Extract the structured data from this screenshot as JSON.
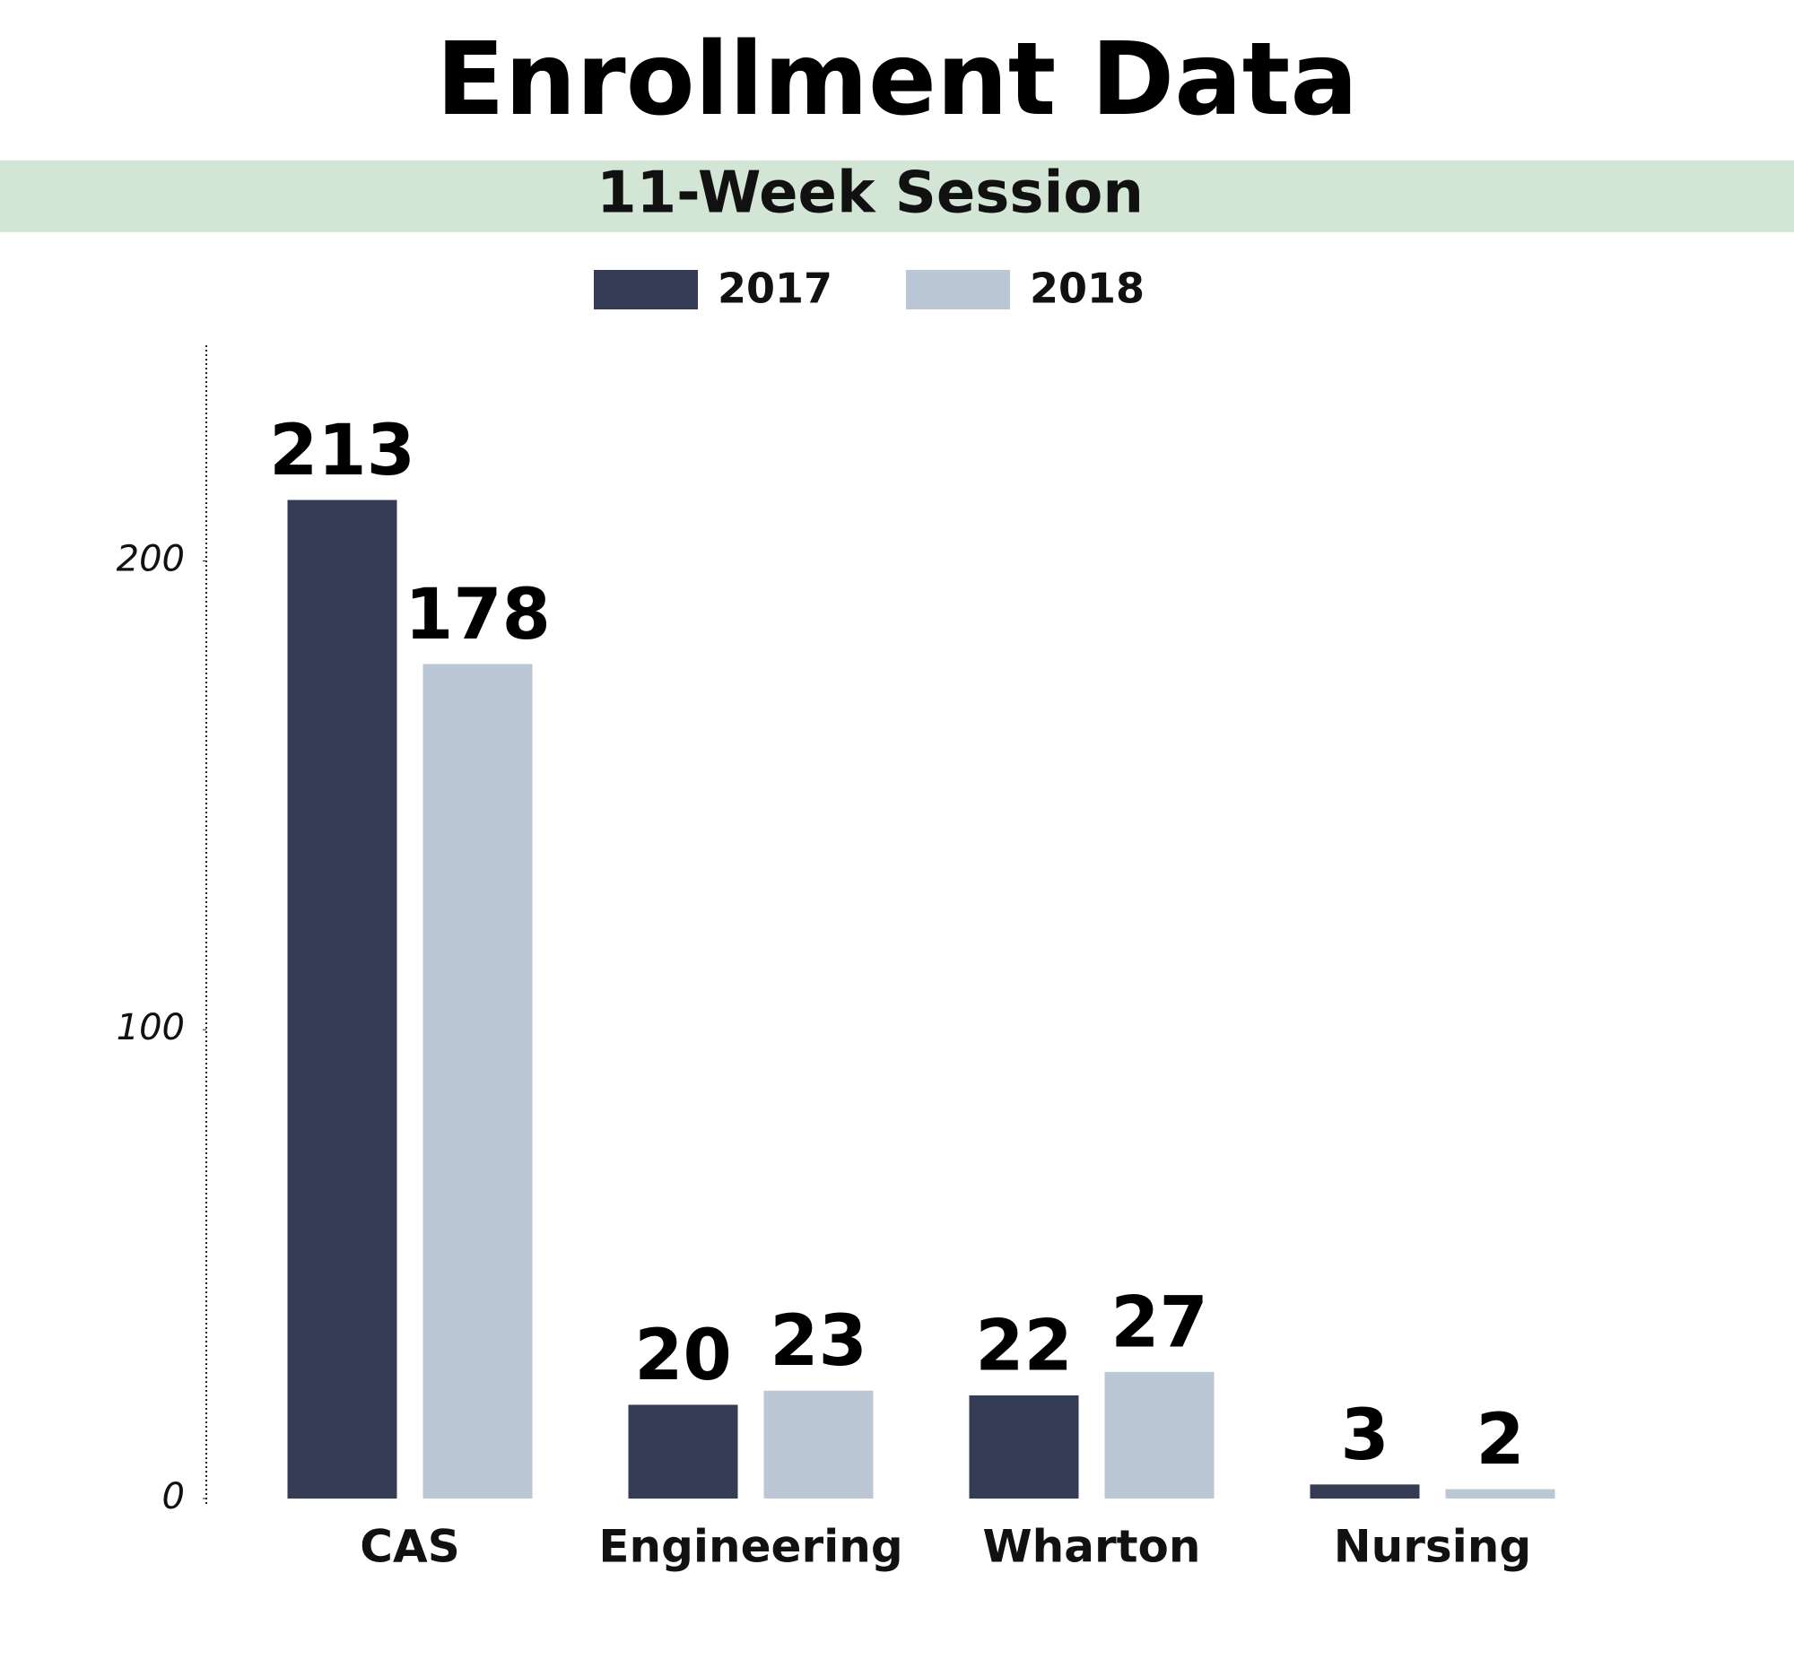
{
  "chart_data": {
    "type": "bar",
    "title": "Enrollment Data",
    "subtitle": "11-Week Session",
    "categories": [
      "CAS",
      "Engineering",
      "Wharton",
      "Nursing"
    ],
    "series": [
      {
        "name": "2017",
        "color": "#353c56",
        "values": [
          213,
          20,
          22,
          3
        ]
      },
      {
        "name": "2018",
        "color": "#bcc7d6",
        "values": [
          178,
          23,
          27,
          2
        ]
      }
    ],
    "ylim": [
      0,
      246
    ],
    "yticks": [
      0,
      100,
      200
    ]
  }
}
